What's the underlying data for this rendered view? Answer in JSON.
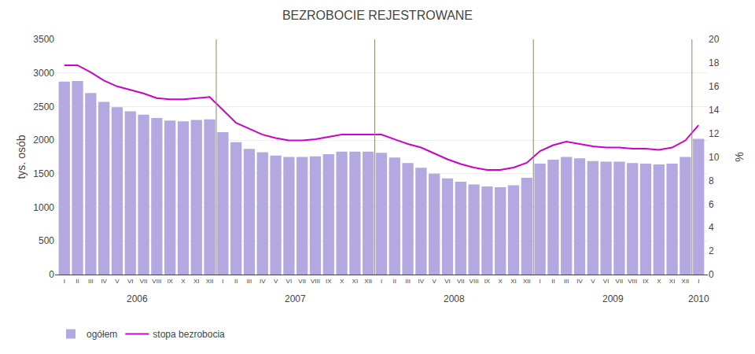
{
  "chart_data": {
    "type": "bar",
    "title": "BEZROBOCIE REJESTROWANE",
    "ylabel": "tys. osób",
    "y2label": "%",
    "categories": [
      "I",
      "II",
      "III",
      "IV",
      "V",
      "VI",
      "VII",
      "VIII",
      "IX",
      "X",
      "XI",
      "XII",
      "I",
      "II",
      "III",
      "IV",
      "V",
      "VI",
      "VII",
      "VIII",
      "IX",
      "X",
      "XI",
      "XII",
      "I",
      "II",
      "III",
      "IV",
      "V",
      "VI",
      "VII",
      "VIII",
      "IX",
      "X",
      "XI",
      "XII",
      "I",
      "II",
      "III",
      "IV",
      "V",
      "VI",
      "VII",
      "VIII",
      "IX",
      "X",
      "XI",
      "XII",
      "I"
    ],
    "years": [
      "2006",
      "2007",
      "2008",
      "2009",
      "2010"
    ],
    "series": [
      {
        "name": "ogółem",
        "type": "bar",
        "color": "#b3a8e0",
        "values": [
          2870,
          2880,
          2700,
          2570,
          2490,
          2430,
          2380,
          2330,
          2290,
          2280,
          2300,
          2310,
          2120,
          1970,
          1870,
          1820,
          1770,
          1750,
          1750,
          1760,
          1790,
          1830,
          1830,
          1830,
          1810,
          1740,
          1660,
          1590,
          1500,
          1430,
          1380,
          1340,
          1310,
          1300,
          1330,
          1440,
          1650,
          1710,
          1750,
          1730,
          1690,
          1680,
          1680,
          1660,
          1650,
          1640,
          1650,
          1750,
          2020
        ]
      },
      {
        "name": "stopa bezrobocia",
        "type": "line",
        "axis": "y2",
        "color": "#cc00cc",
        "values": [
          17.8,
          17.8,
          17.2,
          16.5,
          16.0,
          15.7,
          15.4,
          15.0,
          14.9,
          14.9,
          15.0,
          15.1,
          14.0,
          12.9,
          12.4,
          11.9,
          11.6,
          11.4,
          11.4,
          11.5,
          11.7,
          11.9,
          11.9,
          11.9,
          11.9,
          11.5,
          11.1,
          10.8,
          10.3,
          9.8,
          9.4,
          9.1,
          8.9,
          8.9,
          9.1,
          9.5,
          10.5,
          11.0,
          11.3,
          11.1,
          10.9,
          10.8,
          10.8,
          10.7,
          10.7,
          10.6,
          10.8,
          11.4,
          12.7
        ]
      }
    ],
    "ylim": [
      0,
      3500
    ],
    "yticks": [
      0,
      500,
      1000,
      1500,
      2000,
      2500,
      3000,
      3500
    ],
    "y2lim": [
      0,
      20
    ],
    "y2ticks": [
      0,
      2,
      4,
      6,
      8,
      10,
      12,
      14,
      16,
      18,
      20
    ],
    "grid": true,
    "legend": "lower left"
  }
}
